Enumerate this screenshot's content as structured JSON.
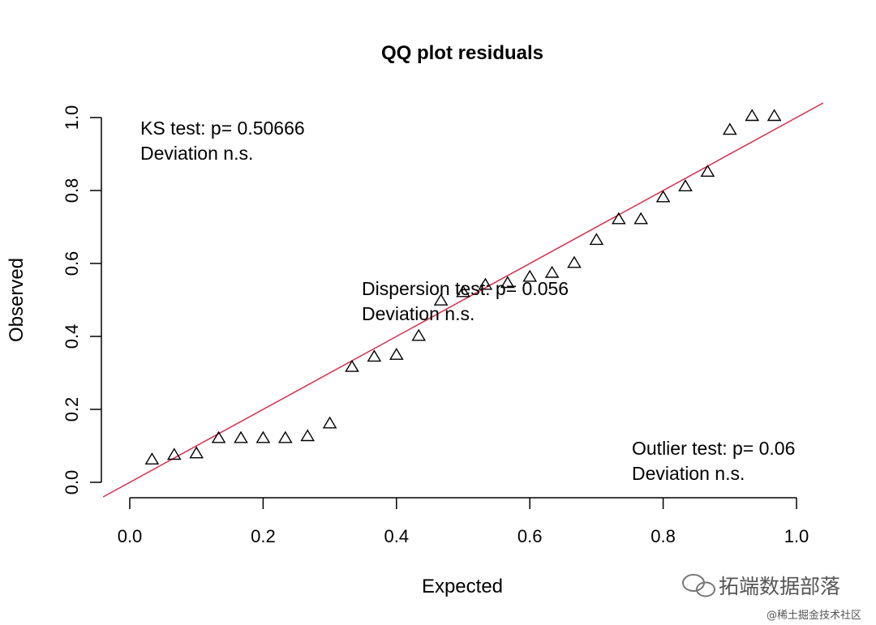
{
  "chart_data": {
    "type": "scatter",
    "title": "QQ plot residuals",
    "xlabel": "Expected",
    "ylabel": "Observed",
    "xlim": [
      0,
      1
    ],
    "ylim": [
      0,
      1
    ],
    "xticks": [
      0.0,
      0.2,
      0.4,
      0.6,
      0.8,
      1.0
    ],
    "xtick_labels": [
      "0.0",
      "0.2",
      "0.4",
      "0.6",
      "0.8",
      "1.0"
    ],
    "yticks": [
      0.0,
      0.2,
      0.4,
      0.6,
      0.8,
      1.0
    ],
    "ytick_labels": [
      "0.0",
      "0.2",
      "0.4",
      "0.6",
      "0.8",
      "1.0"
    ],
    "reference_line": {
      "slope": 1,
      "intercept": 0,
      "color": "#d6304f"
    },
    "marker": "triangle-open",
    "series": [
      {
        "name": "residuals",
        "x": [
          0.0333,
          0.0667,
          0.1,
          0.1333,
          0.1667,
          0.2,
          0.2333,
          0.2667,
          0.3,
          0.3333,
          0.3667,
          0.4,
          0.4333,
          0.4667,
          0.5,
          0.5333,
          0.5667,
          0.6,
          0.6333,
          0.6667,
          0.7,
          0.7333,
          0.7667,
          0.8,
          0.8333,
          0.8667,
          0.9,
          0.9333,
          0.9667
        ],
        "y": [
          0.061,
          0.074,
          0.078,
          0.12,
          0.12,
          0.12,
          0.12,
          0.125,
          0.16,
          0.315,
          0.343,
          0.348,
          0.4,
          0.497,
          0.52,
          0.54,
          0.545,
          0.562,
          0.573,
          0.6,
          0.663,
          0.72,
          0.72,
          0.78,
          0.81,
          0.85,
          0.965,
          1.003,
          1.003
        ]
      }
    ],
    "annotations": [
      {
        "lines": [
          "KS test: p= 0.50666",
          "Deviation  n.s."
        ],
        "position": "top-left"
      },
      {
        "lines": [
          "Dispersion test: p= 0.056",
          "Deviation  n.s."
        ],
        "position": "center"
      },
      {
        "lines": [
          "Outlier test: p= 0.06",
          "Deviation  n.s."
        ],
        "position": "bottom-right"
      }
    ]
  },
  "watermark": {
    "main": "拓端数据部落",
    "sub": "@稀土掘金技术社区"
  }
}
